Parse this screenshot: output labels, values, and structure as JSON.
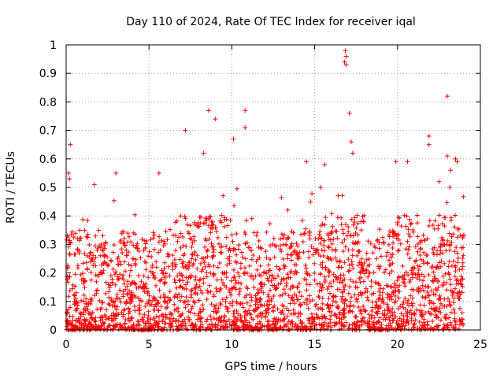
{
  "chart_data": {
    "type": "scatter",
    "title": "Day 110 of 2024, Rate Of TEC Index for receiver iqal",
    "xlabel": "GPS time / hours",
    "ylabel": "ROTI / TECUs",
    "xlim": [
      0,
      25
    ],
    "ylim": [
      0,
      1
    ],
    "xticks": [
      0,
      5,
      10,
      15,
      20,
      25
    ],
    "yticks": [
      0,
      0.1,
      0.2,
      0.3,
      0.4,
      0.5,
      0.6,
      0.7,
      0.8,
      0.9,
      1
    ],
    "grid": true,
    "marker": "+",
    "color": "#ff0000",
    "series": [
      {
        "x_range": [
          0,
          24
        ],
        "bulk_range": [
          0.0,
          0.35
        ],
        "notable_points": [
          {
            "x": 0.25,
            "y": 0.65
          },
          {
            "x": 0.15,
            "y": 0.55
          },
          {
            "x": 0.2,
            "y": 0.53
          },
          {
            "x": 1.7,
            "y": 0.51
          },
          {
            "x": 3.0,
            "y": 0.55
          },
          {
            "x": 5.6,
            "y": 0.55
          },
          {
            "x": 7.2,
            "y": 0.7
          },
          {
            "x": 8.3,
            "y": 0.62
          },
          {
            "x": 8.6,
            "y": 0.77
          },
          {
            "x": 9.0,
            "y": 0.74
          },
          {
            "x": 10.1,
            "y": 0.67
          },
          {
            "x": 10.8,
            "y": 0.77
          },
          {
            "x": 10.8,
            "y": 0.71
          },
          {
            "x": 14.5,
            "y": 0.59
          },
          {
            "x": 15.6,
            "y": 0.58
          },
          {
            "x": 16.85,
            "y": 0.98
          },
          {
            "x": 16.9,
            "y": 0.96
          },
          {
            "x": 16.8,
            "y": 0.94
          },
          {
            "x": 16.9,
            "y": 0.93
          },
          {
            "x": 17.1,
            "y": 0.76
          },
          {
            "x": 17.2,
            "y": 0.66
          },
          {
            "x": 17.3,
            "y": 0.62
          },
          {
            "x": 19.9,
            "y": 0.59
          },
          {
            "x": 20.6,
            "y": 0.59
          },
          {
            "x": 21.9,
            "y": 0.68
          },
          {
            "x": 21.9,
            "y": 0.65
          },
          {
            "x": 22.5,
            "y": 0.52
          },
          {
            "x": 23.0,
            "y": 0.82
          },
          {
            "x": 23.0,
            "y": 0.61
          },
          {
            "x": 23.5,
            "y": 0.6
          },
          {
            "x": 23.6,
            "y": 0.59
          },
          {
            "x": 23.2,
            "y": 0.56
          }
        ]
      }
    ]
  }
}
